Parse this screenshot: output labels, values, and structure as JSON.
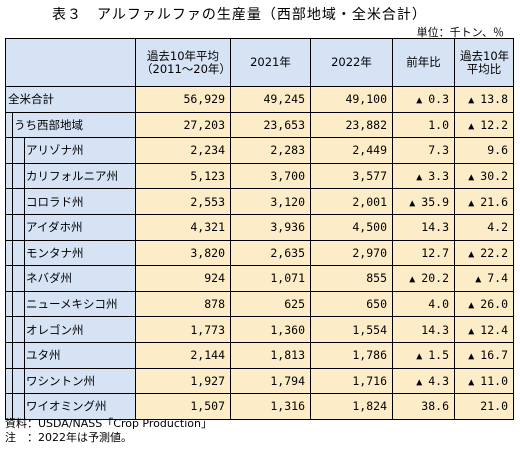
{
  "title": "表３　アルファルファの生産量（西部地域・全米合計）",
  "unit": "単位：千トン、％",
  "headers": {
    "col1": "過去10年平均",
    "col1_sub": "（2011～20年）",
    "col2": "2021年",
    "col3": "2022年",
    "col4": "前年比",
    "col5": "過去10年",
    "col5_sub": "平均比"
  },
  "rows": [
    {
      "label": "全米合計",
      "avg": "56,929",
      "y2021": "49,245",
      "y2022": "49,100",
      "yoy_down": true,
      "yoy": "0.3",
      "vs_avg_down": true,
      "vs_avg": "13.8"
    },
    {
      "label": "うち西部地域",
      "avg": "27,203",
      "y2021": "23,653",
      "y2022": "23,882",
      "yoy_down": false,
      "yoy": "1.0",
      "vs_avg_down": true,
      "vs_avg": "12.2"
    },
    {
      "label": "アリゾナ州",
      "avg": "2,234",
      "y2021": "2,283",
      "y2022": "2,449",
      "yoy_down": false,
      "yoy": "7.3",
      "vs_avg_down": false,
      "vs_avg": "9.6"
    },
    {
      "label": "カリフォルニア州",
      "avg": "5,123",
      "y2021": "3,700",
      "y2022": "3,577",
      "yoy_down": true,
      "yoy": "3.3",
      "vs_avg_down": true,
      "vs_avg": "30.2"
    },
    {
      "label": "コロラド州",
      "avg": "2,553",
      "y2021": "3,120",
      "y2022": "2,001",
      "yoy_down": true,
      "yoy": "35.9",
      "vs_avg_down": true,
      "vs_avg": "21.6"
    },
    {
      "label": "アイダホ州",
      "avg": "4,321",
      "y2021": "3,936",
      "y2022": "4,500",
      "yoy_down": false,
      "yoy": "14.3",
      "vs_avg_down": false,
      "vs_avg": "4.2"
    },
    {
      "label": "モンタナ州",
      "avg": "3,820",
      "y2021": "2,635",
      "y2022": "2,970",
      "yoy_down": false,
      "yoy": "12.7",
      "vs_avg_down": true,
      "vs_avg": "22.2"
    },
    {
      "label": "ネバダ州",
      "avg": "924",
      "y2021": "1,071",
      "y2022": "855",
      "yoy_down": true,
      "yoy": "20.2",
      "vs_avg_down": true,
      "vs_avg": "7.4"
    },
    {
      "label": "ニューメキシコ州",
      "avg": "878",
      "y2021": "625",
      "y2022": "650",
      "yoy_down": false,
      "yoy": "4.0",
      "vs_avg_down": true,
      "vs_avg": "26.0"
    },
    {
      "label": "オレゴン州",
      "avg": "1,773",
      "y2021": "1,360",
      "y2022": "1,554",
      "yoy_down": false,
      "yoy": "14.3",
      "vs_avg_down": true,
      "vs_avg": "12.4"
    },
    {
      "label": "ユタ州",
      "avg": "2,144",
      "y2021": "1,813",
      "y2022": "1,786",
      "yoy_down": true,
      "yoy": "1.5",
      "vs_avg_down": true,
      "vs_avg": "16.7"
    },
    {
      "label": "ワシントン州",
      "avg": "1,927",
      "y2021": "1,794",
      "y2022": "1,716",
      "yoy_down": true,
      "yoy": "4.3",
      "vs_avg_down": true,
      "vs_avg": "11.0"
    },
    {
      "label": "ワイオミング州",
      "avg": "1,507",
      "y2021": "1,316",
      "y2022": "1,824",
      "yoy_down": false,
      "yoy": "38.6",
      "vs_avg_down": false,
      "vs_avg": "21.0"
    }
  ],
  "down_marker": "▲",
  "notes": {
    "source": "資料：USDA/NASS「Crop Production」",
    "note": "注　：2022年は予測値。"
  },
  "colors": {
    "header_bg": "#d6e3f5",
    "cell_bg": "#fdecc8"
  }
}
